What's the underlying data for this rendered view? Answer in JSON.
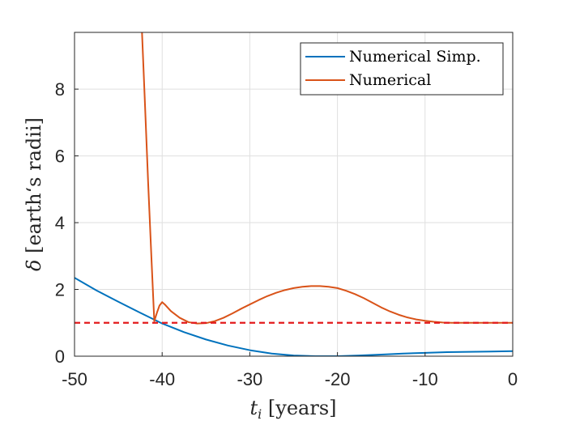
{
  "chart_data": {
    "type": "line",
    "xlabel_symbol": "t",
    "xlabel_sub": "i",
    "xlabel_units": " [years]",
    "ylabel_symbol": "δ",
    "ylabel_units": " [earth‘s radii]",
    "xlim": [
      -50,
      0
    ],
    "ylim": [
      0,
      9.7
    ],
    "xticks": [
      "-50",
      "-40",
      "-30",
      "-20",
      "-10",
      "0"
    ],
    "yticks": [
      "0",
      "2",
      "4",
      "6",
      "8"
    ],
    "xtick_values": [
      -50,
      -40,
      -30,
      -20,
      -10,
      0
    ],
    "ytick_values": [
      0,
      2,
      4,
      6,
      8
    ],
    "grid": true,
    "legend_position": "top-right",
    "series": [
      {
        "name": "Numerical Simp.",
        "color": "#0072BD",
        "x": [
          -50,
          -47.5,
          -45,
          -42.5,
          -40,
          -37.5,
          -35,
          -32.5,
          -30,
          -27.5,
          -25,
          -22.5,
          -20,
          -17.5,
          -15,
          -12.5,
          -10,
          -7.5,
          -5,
          -2.5,
          0
        ],
        "y": [
          2.35,
          1.97,
          1.63,
          1.3,
          0.98,
          0.72,
          0.5,
          0.32,
          0.18,
          0.08,
          0.02,
          0.0,
          0.0,
          0.02,
          0.05,
          0.08,
          0.1,
          0.12,
          0.13,
          0.14,
          0.15
        ]
      },
      {
        "name": "Numerical",
        "color": "#D95319",
        "x": [
          -42.3,
          -42.0,
          -41.6,
          -41.2,
          -40.9,
          -40.6,
          -40.3,
          -40.0,
          -39.7,
          -39.0,
          -38.0,
          -37.0,
          -36.0,
          -35.0,
          -34.0,
          -33.0,
          -32.0,
          -31.0,
          -30.0,
          -29.0,
          -28.0,
          -27.0,
          -26.0,
          -25.0,
          -24.0,
          -23.0,
          -22.0,
          -21.0,
          -20.0,
          -19.0,
          -18.0,
          -17.0,
          -16.0,
          -15.0,
          -14.0,
          -13.0,
          -12.0,
          -11.0,
          -10.0,
          -9.0,
          -8.0,
          -7.0,
          -6.0,
          -5.0,
          -4.0,
          -3.0,
          -2.0,
          -1.0,
          0
        ],
        "y": [
          9.7,
          7.8,
          5.2,
          2.8,
          1.05,
          1.3,
          1.52,
          1.62,
          1.55,
          1.35,
          1.15,
          1.02,
          0.98,
          0.99,
          1.05,
          1.15,
          1.28,
          1.42,
          1.55,
          1.68,
          1.8,
          1.9,
          1.98,
          2.04,
          2.08,
          2.1,
          2.1,
          2.08,
          2.04,
          1.96,
          1.86,
          1.74,
          1.6,
          1.46,
          1.34,
          1.24,
          1.16,
          1.1,
          1.06,
          1.03,
          1.01,
          1.0,
          1.0,
          1.0,
          1.0,
          1.0,
          1.0,
          1.0,
          1.0
        ]
      }
    ],
    "reference_line": {
      "y": 1.0,
      "color": "#E31A1C",
      "style": "dashed"
    }
  }
}
